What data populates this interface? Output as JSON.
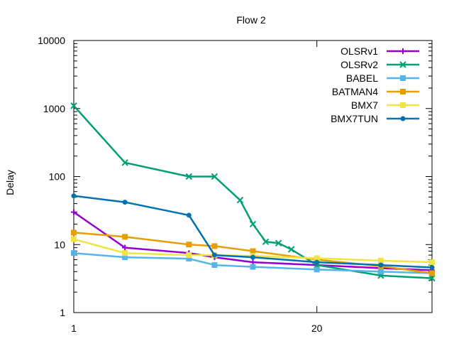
{
  "chart_data": {
    "type": "line",
    "title": "Flow 2",
    "xlabel": "",
    "ylabel": "Delay",
    "y_scale": "log",
    "xlim": [
      1,
      29
    ],
    "ylim": [
      1,
      10000
    ],
    "x_ticks": [
      {
        "value": 1,
        "label": "1"
      },
      {
        "value": 20,
        "label": "20"
      }
    ],
    "y_ticks": [
      {
        "value": 1,
        "label": "1"
      },
      {
        "value": 10,
        "label": "10"
      },
      {
        "value": 100,
        "label": "100"
      },
      {
        "value": 1000,
        "label": "1000"
      },
      {
        "value": 10000,
        "label": "10000"
      }
    ],
    "grid": false,
    "legend_position": "top-right",
    "series": [
      {
        "name": "OLSRv1",
        "color": "#9400d3",
        "marker": "plus",
        "x": [
          1,
          5,
          10,
          12,
          15,
          20,
          25,
          29
        ],
        "y": [
          30,
          9,
          7.5,
          6.5,
          5.5,
          5.0,
          4.5,
          4.2
        ]
      },
      {
        "name": "OLSRv2",
        "color": "#009e73",
        "marker": "cross",
        "x": [
          1,
          5,
          10,
          12,
          14,
          15,
          16,
          17,
          18,
          20,
          25,
          29
        ],
        "y": [
          1100,
          160,
          100,
          100,
          45,
          20,
          11,
          10.5,
          8.5,
          5.0,
          3.5,
          3.2
        ]
      },
      {
        "name": "BABEL",
        "color": "#56b4e9",
        "marker": "square",
        "x": [
          1,
          5,
          10,
          12,
          15,
          20,
          25,
          29
        ],
        "y": [
          7.5,
          6.5,
          6.2,
          5.0,
          4.7,
          4.3,
          4.0,
          3.8
        ]
      },
      {
        "name": "BATMAN4",
        "color": "#e69f00",
        "marker": "square",
        "x": [
          1,
          5,
          10,
          12,
          15,
          20,
          25,
          29
        ],
        "y": [
          15,
          13,
          10,
          9.5,
          8.0,
          6.0,
          4.8,
          3.8
        ]
      },
      {
        "name": "BMX7",
        "color": "#f0e442",
        "marker": "square",
        "x": [
          1,
          5,
          10,
          12,
          15,
          20,
          25,
          29
        ],
        "y": [
          12,
          7.5,
          7.0,
          7.0,
          6.8,
          6.3,
          5.8,
          5.5
        ]
      },
      {
        "name": "BMX7TUN",
        "color": "#0072b2",
        "marker": "circle",
        "x": [
          1,
          5,
          10,
          12,
          15,
          20,
          25,
          29
        ],
        "y": [
          52,
          42,
          27,
          7.0,
          6.5,
          5.5,
          5.0,
          4.6
        ]
      }
    ]
  }
}
